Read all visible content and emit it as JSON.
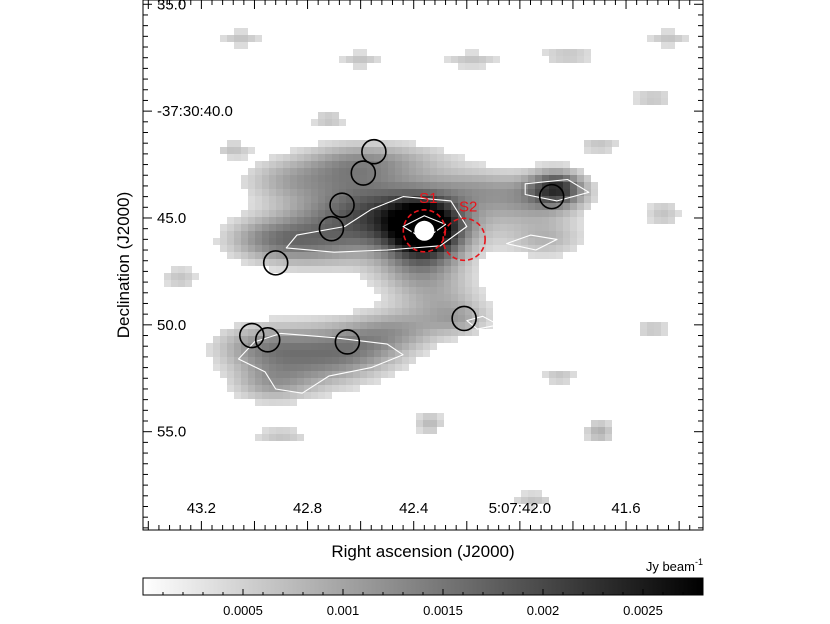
{
  "chart_data": {
    "type": "heatmap",
    "title": "",
    "xlabel": "Right ascension (J2000)",
    "ylabel": "Declination (J2000)",
    "x_ticks": [
      {
        "label": "43.2",
        "ra_s": 43.2
      },
      {
        "label": "42.8",
        "ra_s": 42.8
      },
      {
        "label": "42.4",
        "ra_s": 42.4
      },
      {
        "label": "5:07:42.0",
        "ra_s": 42.0
      },
      {
        "label": "41.6",
        "ra_s": 41.6
      }
    ],
    "y_ticks": [
      {
        "label": "35.0",
        "dec_s": 35.0
      },
      {
        "label": "-37:30:40.0",
        "dec_s": 40.0
      },
      {
        "label": "45.0",
        "dec_s": 45.0
      },
      {
        "label": "50.0",
        "dec_s": 50.0
      },
      {
        "label": "55.0",
        "dec_s": 55.0
      }
    ],
    "xlim_ra_s": [
      43.42,
      41.31
    ],
    "ylim_dec_s": [
      34.8,
      59.6
    ],
    "colorbar": {
      "unit": "Jy beam",
      "unit_exponent": "-1",
      "range": [
        0,
        0.0028
      ],
      "ticks": [
        {
          "label": "0.0005",
          "value": 0.0005
        },
        {
          "label": "0.001",
          "value": 0.001
        },
        {
          "label": "0.0015",
          "value": 0.0015
        },
        {
          "label": "0.002",
          "value": 0.002
        },
        {
          "label": "0.0025",
          "value": 0.0025
        }
      ],
      "colormap": "gray_r"
    },
    "emission_blobs": [
      {
        "ra_s": 42.36,
        "dec_s": 45.6,
        "sra": 0.09,
        "sdec": 0.9,
        "peak": 0.0028
      },
      {
        "ra_s": 42.42,
        "dec_s": 45.0,
        "sra": 0.2,
        "sdec": 1.2,
        "peak": 0.0012
      },
      {
        "ra_s": 42.6,
        "dec_s": 44.8,
        "sra": 0.2,
        "sdec": 1.0,
        "peak": 0.001
      },
      {
        "ra_s": 42.95,
        "dec_s": 46.0,
        "sra": 0.12,
        "sdec": 0.7,
        "peak": 0.0008
      },
      {
        "ra_s": 42.78,
        "dec_s": 46.2,
        "sra": 0.14,
        "sdec": 0.8,
        "peak": 0.0008
      },
      {
        "ra_s": 42.65,
        "dec_s": 42.8,
        "sra": 0.13,
        "sdec": 0.8,
        "peak": 0.0007
      },
      {
        "ra_s": 42.5,
        "dec_s": 42.3,
        "sra": 0.18,
        "sdec": 0.6,
        "peak": 0.0006
      },
      {
        "ra_s": 42.88,
        "dec_s": 43.2,
        "sra": 0.12,
        "sdec": 0.7,
        "peak": 0.0006
      },
      {
        "ra_s": 42.38,
        "dec_s": 47.5,
        "sra": 0.12,
        "sdec": 0.8,
        "peak": 0.0007
      },
      {
        "ra_s": 42.3,
        "dec_s": 49.0,
        "sra": 0.12,
        "sdec": 0.8,
        "peak": 0.0006
      },
      {
        "ra_s": 41.86,
        "dec_s": 43.6,
        "sra": 0.07,
        "sdec": 0.55,
        "peak": 0.0018
      },
      {
        "ra_s": 41.95,
        "dec_s": 44.2,
        "sra": 0.13,
        "sdec": 0.8,
        "peak": 0.0008
      },
      {
        "ra_s": 41.9,
        "dec_s": 46.0,
        "sra": 0.1,
        "sdec": 0.6,
        "peak": 0.0006
      },
      {
        "ra_s": 42.16,
        "dec_s": 43.6,
        "sra": 0.12,
        "sdec": 0.6,
        "peak": 0.0005
      },
      {
        "ra_s": 42.8,
        "dec_s": 51.6,
        "sra": 0.17,
        "sdec": 1.0,
        "peak": 0.001
      },
      {
        "ra_s": 42.6,
        "dec_s": 51.0,
        "sra": 0.14,
        "sdec": 0.8,
        "peak": 0.0008
      },
      {
        "ra_s": 42.98,
        "dec_s": 51.0,
        "sra": 0.12,
        "sdec": 0.7,
        "peak": 0.0007
      },
      {
        "ra_s": 42.46,
        "dec_s": 50.2,
        "sra": 0.12,
        "sdec": 0.6,
        "peak": 0.0006
      },
      {
        "ra_s": 42.94,
        "dec_s": 52.8,
        "sra": 0.1,
        "sdec": 0.6,
        "peak": 0.0006
      },
      {
        "ra_s": 42.22,
        "dec_s": 49.8,
        "sra": 0.08,
        "sdec": 0.5,
        "peak": 0.0005
      },
      {
        "ra_s": 43.05,
        "dec_s": 36.6,
        "sra": 0.06,
        "sdec": 0.3,
        "peak": 0.0005
      },
      {
        "ra_s": 42.6,
        "dec_s": 37.6,
        "sra": 0.06,
        "sdec": 0.3,
        "peak": 0.0005
      },
      {
        "ra_s": 42.18,
        "dec_s": 37.6,
        "sra": 0.08,
        "sdec": 0.3,
        "peak": 0.0005
      },
      {
        "ra_s": 41.82,
        "dec_s": 37.4,
        "sra": 0.08,
        "sdec": 0.3,
        "peak": 0.0005
      },
      {
        "ra_s": 41.44,
        "dec_s": 36.6,
        "sra": 0.06,
        "sdec": 0.3,
        "peak": 0.0005
      },
      {
        "ra_s": 41.5,
        "dec_s": 39.4,
        "sra": 0.06,
        "sdec": 0.3,
        "peak": 0.0005
      },
      {
        "ra_s": 41.7,
        "dec_s": 41.6,
        "sra": 0.06,
        "sdec": 0.3,
        "peak": 0.0005
      },
      {
        "ra_s": 41.46,
        "dec_s": 44.8,
        "sra": 0.05,
        "sdec": 0.5,
        "peak": 0.0005
      },
      {
        "ra_s": 42.72,
        "dec_s": 40.4,
        "sra": 0.05,
        "sdec": 0.3,
        "peak": 0.0005
      },
      {
        "ra_s": 43.08,
        "dec_s": 41.8,
        "sra": 0.05,
        "sdec": 0.3,
        "peak": 0.0005
      },
      {
        "ra_s": 43.28,
        "dec_s": 47.8,
        "sra": 0.05,
        "sdec": 0.4,
        "peak": 0.0005
      },
      {
        "ra_s": 42.9,
        "dec_s": 55.2,
        "sra": 0.08,
        "sdec": 0.3,
        "peak": 0.0005
      },
      {
        "ra_s": 42.34,
        "dec_s": 54.6,
        "sra": 0.04,
        "sdec": 0.4,
        "peak": 0.0006
      },
      {
        "ra_s": 41.7,
        "dec_s": 55.0,
        "sra": 0.04,
        "sdec": 0.4,
        "peak": 0.0007
      },
      {
        "ra_s": 41.95,
        "dec_s": 58.2,
        "sra": 0.06,
        "sdec": 0.3,
        "peak": 0.0005
      },
      {
        "ra_s": 41.5,
        "dec_s": 50.2,
        "sra": 0.05,
        "sdec": 0.3,
        "peak": 0.0005
      },
      {
        "ra_s": 41.85,
        "dec_s": 52.4,
        "sra": 0.05,
        "sdec": 0.3,
        "peak": 0.0005
      }
    ],
    "contours": [
      {
        "color": "#ffffff",
        "points": [
          [
            42.88,
            46.4
          ],
          [
            42.84,
            45.8
          ],
          [
            42.66,
            45.4
          ],
          [
            42.56,
            44.6
          ],
          [
            42.44,
            44.0
          ],
          [
            42.26,
            44.2
          ],
          [
            42.2,
            45.4
          ],
          [
            42.3,
            46.3
          ],
          [
            42.5,
            46.5
          ],
          [
            42.7,
            46.6
          ]
        ]
      },
      {
        "color": "#ffffff",
        "points": [
          [
            42.36,
            46.0
          ],
          [
            42.28,
            45.3
          ],
          [
            42.36,
            44.9
          ],
          [
            42.44,
            45.4
          ]
        ]
      },
      {
        "color": "#ffffff",
        "points": [
          [
            41.98,
            43.4
          ],
          [
            41.82,
            43.2
          ],
          [
            41.74,
            43.8
          ],
          [
            41.86,
            44.2
          ],
          [
            41.98,
            43.9
          ]
        ]
      },
      {
        "color": "#ffffff",
        "points": [
          [
            42.05,
            46.2
          ],
          [
            41.96,
            45.8
          ],
          [
            41.86,
            46.0
          ],
          [
            41.94,
            46.5
          ]
        ]
      },
      {
        "color": "#ffffff",
        "points": [
          [
            42.2,
            49.8
          ],
          [
            42.14,
            49.6
          ],
          [
            42.08,
            50.0
          ],
          [
            42.16,
            50.2
          ]
        ]
      },
      {
        "color": "#ffffff",
        "points": [
          [
            43.0,
            50.8
          ],
          [
            42.9,
            50.4
          ],
          [
            42.7,
            50.6
          ],
          [
            42.5,
            50.9
          ],
          [
            42.44,
            51.4
          ],
          [
            42.56,
            52.0
          ],
          [
            42.72,
            52.4
          ],
          [
            42.82,
            53.2
          ],
          [
            42.92,
            53.0
          ],
          [
            42.96,
            52.2
          ],
          [
            43.06,
            51.6
          ]
        ]
      }
    ],
    "circles": [
      {
        "ra_s": 42.36,
        "dec_s": 45.6,
        "style": "black-on-white"
      },
      {
        "ra_s": 42.55,
        "dec_s": 41.9,
        "style": "black"
      },
      {
        "ra_s": 42.59,
        "dec_s": 42.9,
        "style": "black"
      },
      {
        "ra_s": 42.67,
        "dec_s": 44.4,
        "style": "black"
      },
      {
        "ra_s": 42.71,
        "dec_s": 45.5,
        "style": "black"
      },
      {
        "ra_s": 42.92,
        "dec_s": 47.1,
        "style": "black"
      },
      {
        "ra_s": 41.88,
        "dec_s": 44.0,
        "style": "black"
      },
      {
        "ra_s": 42.21,
        "dec_s": 49.7,
        "style": "black"
      },
      {
        "ra_s": 43.01,
        "dec_s": 50.5,
        "style": "black"
      },
      {
        "ra_s": 42.95,
        "dec_s": 50.7,
        "style": "black"
      },
      {
        "ra_s": 42.65,
        "dec_s": 50.8,
        "style": "black"
      }
    ],
    "sources": [
      {
        "name": "S1",
        "ra_s": 42.36,
        "dec_s": 45.6,
        "color": "#e8141b"
      },
      {
        "name": "S2",
        "ra_s": 42.21,
        "dec_s": 46.0,
        "color": "#e8141b"
      }
    ]
  }
}
